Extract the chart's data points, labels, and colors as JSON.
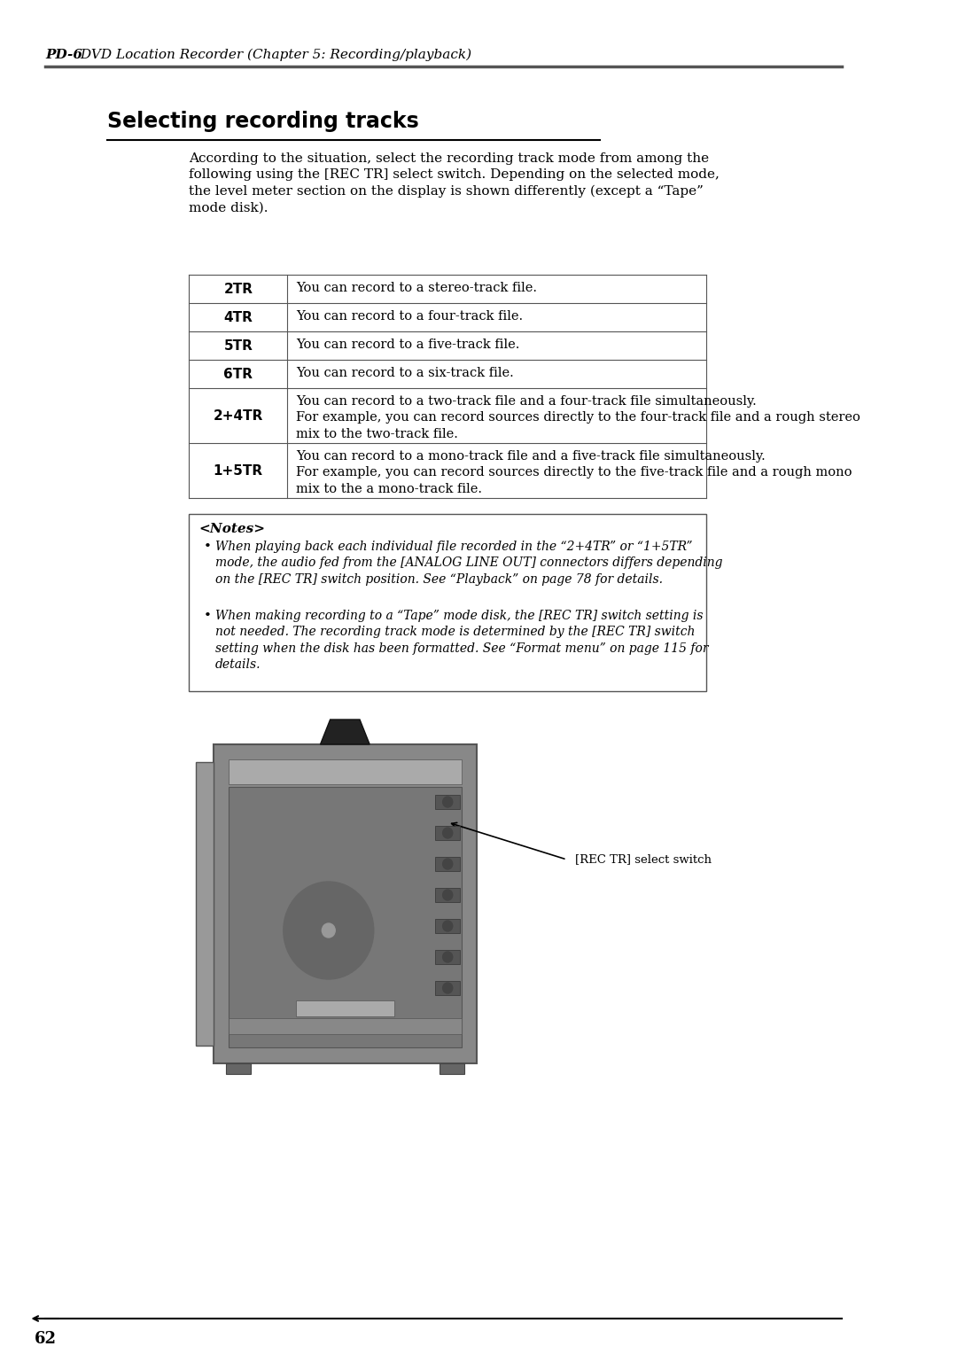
{
  "header_bold": "PD-6",
  "header_rest": " DVD Location Recorder (Chapter 5: Recording/playback)",
  "section_title": "Selecting recording tracks",
  "intro_text": "According to the situation, select the recording track mode from among the\nfollowing using the [REC TR] select switch. Depending on the selected mode,\nthe level meter section on the display is shown differently (except a “Tape”\nmode disk).",
  "table_rows": [
    {
      "label": "2TR",
      "desc": "You can record to a stereo-track file."
    },
    {
      "label": "4TR",
      "desc": "You can record to a four-track file."
    },
    {
      "label": "5TR",
      "desc": "You can record to a five-track file."
    },
    {
      "label": "6TR",
      "desc": "You can record to a six-track file."
    },
    {
      "label": "2+4TR",
      "desc": "You can record to a two-track file and a four-track file simultaneously.\nFor example, you can record sources directly to the four-track file and a rough stereo\nmix to the two-track file."
    },
    {
      "label": "1+5TR",
      "desc": "You can record to a mono-track file and a five-track file simultaneously.\nFor example, you can record sources directly to the five-track file and a rough mono\nmix to the a mono-track file."
    }
  ],
  "notes_title": "<Notes>",
  "notes": [
    "When playing back each individual file recorded in the “2+4TR” or “1+5TR”\nmode, the audio fed from the [ANALOG LINE OUT] connectors differs depending\non the [REC TR] switch position. See “Playback” on page 78 for details.",
    "When making recording to a “Tape” mode disk, the [REC TR] switch setting is\nnot needed. The recording track mode is determined by the [REC TR] switch\nsetting when the disk has been formatted. See “Format menu” on page 115 for\ndetails."
  ],
  "label_text": "[REC TR] select switch",
  "page_number": "62",
  "bg_color": "#ffffff",
  "header_line_color": "#555555",
  "section_underline_color": "#000000",
  "table_border_color": "#555555",
  "notes_border_color": "#555555",
  "device_body_color": "#888888",
  "device_dark_color": "#555555",
  "device_light_color": "#aaaaaa"
}
